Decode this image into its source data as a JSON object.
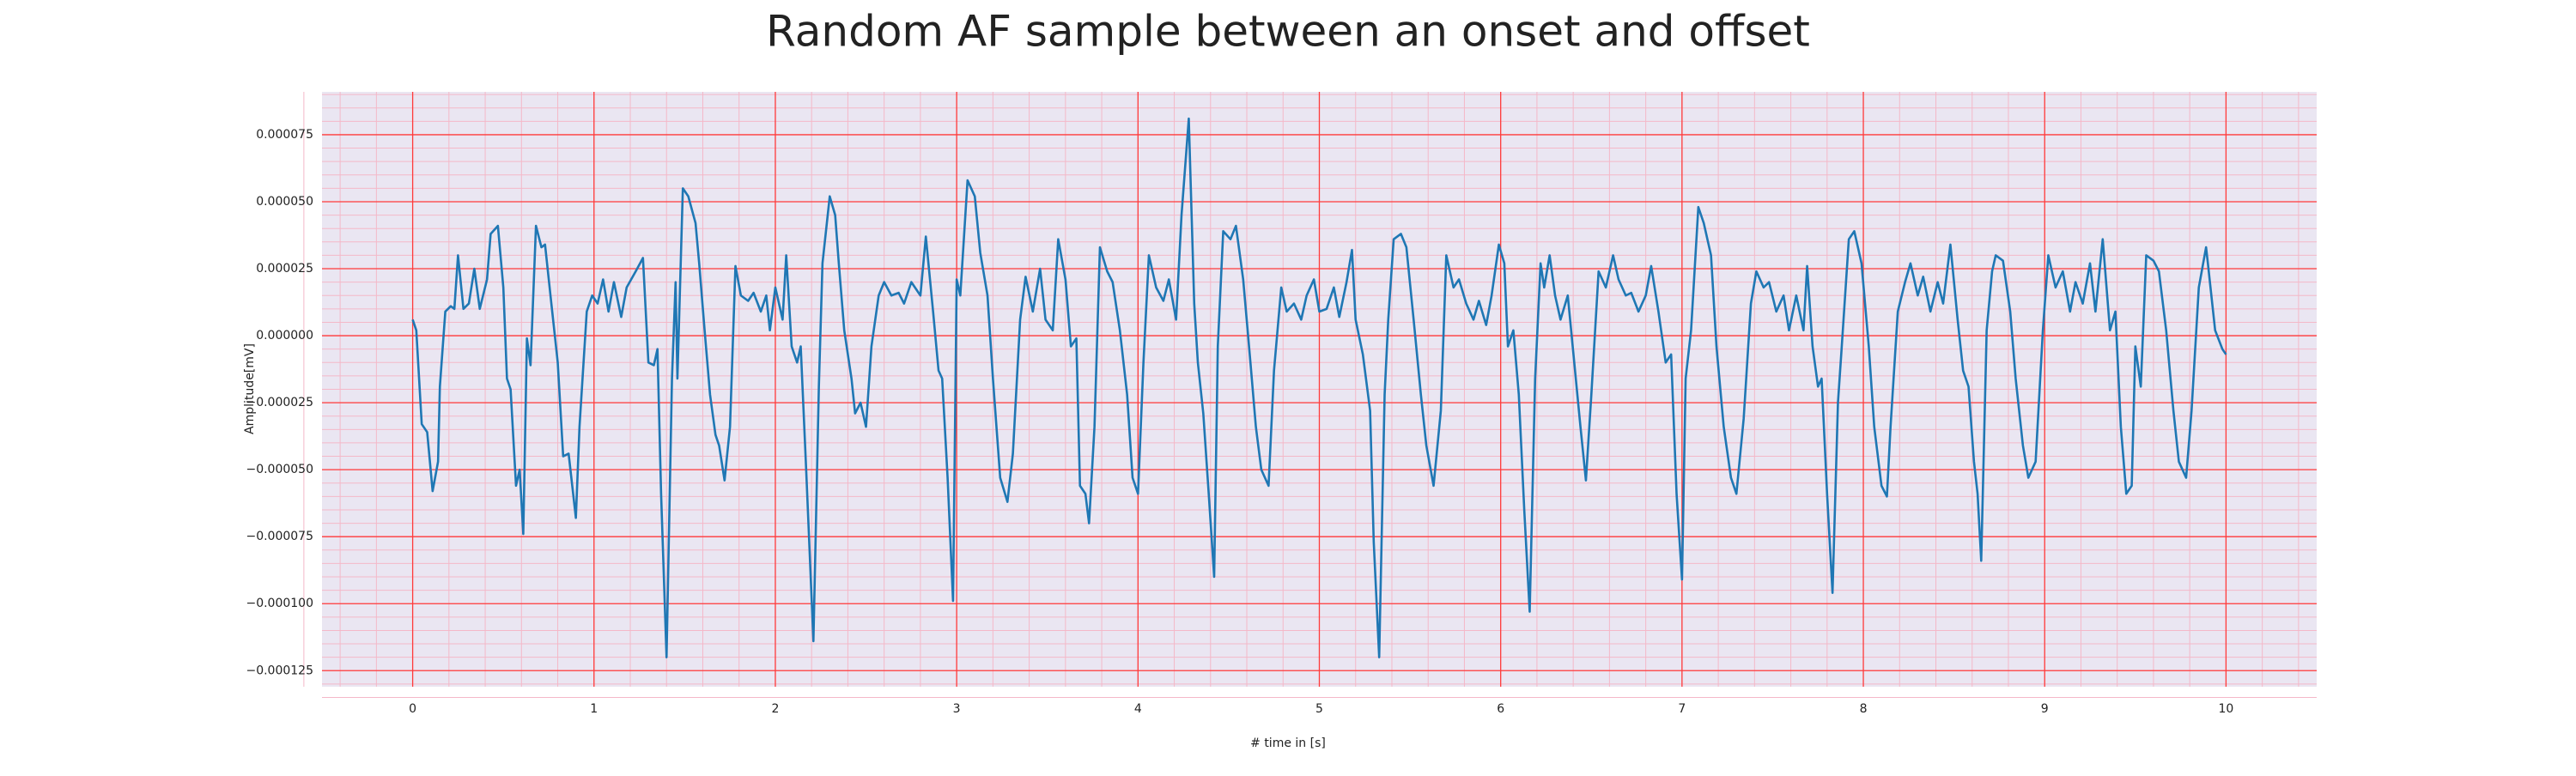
{
  "chart_data": {
    "type": "line",
    "title": "Random AF sample between an onset and offset",
    "xlabel": "# time in [s]",
    "ylabel": "Amplitude[mV]",
    "color": "#1f77b4",
    "background": "#eae6f2",
    "grid": true,
    "grid_color": "#ff3b3b",
    "minor_grid_color": "#f4b8c8",
    "minor_divisions": 5,
    "xlim": [
      -0.5,
      10.5
    ],
    "ylim": [
      -0.000131,
      9.1e-05
    ],
    "xticks": [
      0,
      1,
      2,
      3,
      4,
      5,
      6,
      7,
      8,
      9,
      10
    ],
    "yticks": [
      {
        "value": -0.000125,
        "label": "−0.000125"
      },
      {
        "value": -0.0001,
        "label": "−0.000100"
      },
      {
        "value": -7.5e-05,
        "label": "−0.000075"
      },
      {
        "value": -5e-05,
        "label": "−0.000050"
      },
      {
        "value": -2.5e-05,
        "label": "−0.000025"
      },
      {
        "value": 0,
        "label": "0.000000"
      },
      {
        "value": 2.5e-05,
        "label": "0.000025"
      },
      {
        "value": 5e-05,
        "label": "0.000050"
      },
      {
        "value": 7.5e-05,
        "label": "0.000075"
      }
    ],
    "x": [
      0,
      0.02,
      0.05,
      0.08,
      0.11,
      0.14,
      0.15,
      0.18,
      0.21,
      0.23,
      0.25,
      0.28,
      0.31,
      0.34,
      0.37,
      0.41,
      0.43,
      0.47,
      0.5,
      0.52,
      0.54,
      0.57,
      0.59,
      0.61,
      0.63,
      0.65,
      0.68,
      0.71,
      0.73,
      0.76,
      0.8,
      0.83,
      0.86,
      0.9,
      0.92,
      0.96,
      0.99,
      1.02,
      1.05,
      1.08,
      1.11,
      1.15,
      1.18,
      1.23,
      1.27,
      1.3,
      1.33,
      1.35,
      1.37,
      1.4,
      1.43,
      1.45,
      1.46,
      1.49,
      1.52,
      1.56,
      1.58,
      1.61,
      1.64,
      1.67,
      1.69,
      1.72,
      1.75,
      1.78,
      1.81,
      1.85,
      1.88,
      1.92,
      1.95,
      1.97,
      2.0,
      2.04,
      2.06,
      2.09,
      2.12,
      2.14,
      2.17,
      2.21,
      2.24,
      2.26,
      2.3,
      2.33,
      2.35,
      2.38,
      2.42,
      2.44,
      2.47,
      2.5,
      2.53,
      2.57,
      2.6,
      2.64,
      2.68,
      2.71,
      2.75,
      2.8,
      2.83,
      2.87,
      2.9,
      2.92,
      2.95,
      2.98,
      3.0,
      3.02,
      3.06,
      3.1,
      3.13,
      3.17,
      3.2,
      3.24,
      3.28,
      3.31,
      3.35,
      3.38,
      3.42,
      3.46,
      3.49,
      3.53,
      3.56,
      3.6,
      3.63,
      3.66,
      3.68,
      3.71,
      3.73,
      3.76,
      3.79,
      3.83,
      3.86,
      3.9,
      3.94,
      3.97,
      4.0,
      4.03,
      4.06,
      4.1,
      4.14,
      4.17,
      4.21,
      4.24,
      4.28,
      4.31,
      4.33,
      4.36,
      4.39,
      4.42,
      4.44,
      4.47,
      4.51,
      4.54,
      4.58,
      4.62,
      4.65,
      4.68,
      4.72,
      4.75,
      4.79,
      4.82,
      4.86,
      4.9,
      4.93,
      4.97,
      5.0,
      5.04,
      5.08,
      5.11,
      5.15,
      5.18,
      5.2,
      5.24,
      5.28,
      5.3,
      5.33,
      5.36,
      5.38,
      5.41,
      5.45,
      5.48,
      5.52,
      5.56,
      5.59,
      5.63,
      5.67,
      5.7,
      5.74,
      5.77,
      5.81,
      5.85,
      5.88,
      5.92,
      5.95,
      5.99,
      6.02,
      6.04,
      6.07,
      6.1,
      6.13,
      6.16,
      6.19,
      6.22,
      6.24,
      6.27,
      6.3,
      6.33,
      6.37,
      6.41,
      6.44,
      6.47,
      6.5,
      6.54,
      6.58,
      6.62,
      6.65,
      6.69,
      6.72,
      6.76,
      6.8,
      6.83,
      6.87,
      6.91,
      6.94,
      6.97,
      7.0,
      7.02,
      7.05,
      7.09,
      7.12,
      7.16,
      7.19,
      7.23,
      7.27,
      7.3,
      7.34,
      7.38,
      7.41,
      7.45,
      7.48,
      7.52,
      7.56,
      7.59,
      7.63,
      7.67,
      7.69,
      7.72,
      7.75,
      7.77,
      7.8,
      7.83,
      7.86,
      7.88,
      7.92,
      7.95,
      7.99,
      8.03,
      8.06,
      8.1,
      8.13,
      8.15,
      8.19,
      8.23,
      8.26,
      8.3,
      8.33,
      8.37,
      8.41,
      8.44,
      8.48,
      8.52,
      8.55,
      8.58,
      8.61,
      8.63,
      8.65,
      8.68,
      8.71,
      8.73,
      8.77,
      8.81,
      8.84,
      8.88,
      8.91,
      8.95,
      8.99,
      9.02,
      9.06,
      9.1,
      9.14,
      9.17,
      9.21,
      9.25,
      9.28,
      9.32,
      9.36,
      9.39,
      9.42,
      9.45,
      9.48,
      9.5,
      9.53,
      9.56,
      9.6,
      9.63,
      9.67,
      9.71,
      9.74,
      9.78,
      9.81,
      9.85,
      9.89,
      9.9,
      9.94,
      9.98,
      10.0
    ],
    "values": [
      6e-06,
      2e-06,
      -3.3e-05,
      -3.6e-05,
      -5.8e-05,
      -4.7e-05,
      -1.9e-05,
      9e-06,
      1.1e-05,
      1e-05,
      3e-05,
      1e-05,
      1.2e-05,
      2.5e-05,
      1e-05,
      2.1e-05,
      3.8e-05,
      4.1e-05,
      1.8e-05,
      -1.6e-05,
      -2e-05,
      -5.6e-05,
      -5e-05,
      -7.4e-05,
      -1e-06,
      -1.1e-05,
      4.1e-05,
      3.3e-05,
      3.4e-05,
      1.5e-05,
      -1e-05,
      -4.5e-05,
      -4.4e-05,
      -6.8e-05,
      -3.4e-05,
      9e-06,
      1.5e-05,
      1.2e-05,
      2.1e-05,
      9e-06,
      2e-05,
      7e-06,
      1.8e-05,
      2.4e-05,
      2.9e-05,
      -1e-05,
      -1.1e-05,
      -5e-06,
      -5.9e-05,
      -0.00012,
      -1.6e-05,
      2e-05,
      -1.6e-05,
      5.5e-05,
      5.2e-05,
      4.2e-05,
      2.7e-05,
      2e-06,
      -2.2e-05,
      -3.7e-05,
      -4.1e-05,
      -5.4e-05,
      -3.4e-05,
      2.6e-05,
      1.5e-05,
      1.3e-05,
      1.6e-05,
      9e-06,
      1.5e-05,
      2e-06,
      1.8e-05,
      6e-06,
      3e-05,
      -4e-06,
      -1e-05,
      -4e-06,
      -5e-05,
      -0.000114,
      -1.9e-05,
      2.7e-05,
      5.2e-05,
      4.5e-05,
      2.7e-05,
      2e-06,
      -1.6e-05,
      -2.9e-05,
      -2.5e-05,
      -3.4e-05,
      -4e-06,
      1.5e-05,
      2e-05,
      1.5e-05,
      1.6e-05,
      1.2e-05,
      2e-05,
      1.5e-05,
      3.7e-05,
      9e-06,
      -1.3e-05,
      -1.6e-05,
      -5.3e-05,
      -9.9e-05,
      2.1e-05,
      1.5e-05,
      5.8e-05,
      5.2e-05,
      3.1e-05,
      1.5e-05,
      -1.6e-05,
      -5.3e-05,
      -6.2e-05,
      -4.4e-05,
      6e-06,
      2.2e-05,
      9e-06,
      2.5e-05,
      6e-06,
      2e-06,
      3.6e-05,
      2.1e-05,
      -4e-06,
      -1e-06,
      -5.6e-05,
      -5.9e-05,
      -7e-05,
      -3.4e-05,
      3.3e-05,
      2.4e-05,
      2e-05,
      2e-06,
      -2.2e-05,
      -5.3e-05,
      -5.9e-05,
      -1e-05,
      3e-05,
      1.8e-05,
      1.3e-05,
      2.1e-05,
      6e-06,
      4.5e-05,
      8.1e-05,
      1.2e-05,
      -1e-05,
      -2.9e-05,
      -5.9e-05,
      -9e-05,
      -4e-06,
      3.9e-05,
      3.6e-05,
      4.1e-05,
      2.1e-05,
      -1e-05,
      -3.4e-05,
      -5e-05,
      -5.6e-05,
      -1.3e-05,
      1.8e-05,
      9e-06,
      1.2e-05,
      6e-06,
      1.5e-05,
      2.1e-05,
      9e-06,
      1e-05,
      1.8e-05,
      7e-06,
      2e-05,
      3.2e-05,
      6e-06,
      -7e-06,
      -2.8e-05,
      -7.7e-05,
      -0.00012,
      -2.2e-05,
      6e-06,
      3.6e-05,
      3.8e-05,
      3.3e-05,
      6e-06,
      -2.2e-05,
      -4.1e-05,
      -5.6e-05,
      -2.8e-05,
      3e-05,
      1.8e-05,
      2.1e-05,
      1.2e-05,
      6e-06,
      1.3e-05,
      4e-06,
      1.5e-05,
      3.4e-05,
      2.7e-05,
      -4e-06,
      2e-06,
      -2.2e-05,
      -6.5e-05,
      -0.000103,
      -1.6e-05,
      2.7e-05,
      1.8e-05,
      3e-05,
      1.5e-05,
      6e-06,
      1.5e-05,
      -1.3e-05,
      -3.4e-05,
      -5.4e-05,
      -2.2e-05,
      2.4e-05,
      1.8e-05,
      3e-05,
      2.1e-05,
      1.5e-05,
      1.6e-05,
      9e-06,
      1.5e-05,
      2.6e-05,
      9e-06,
      -1e-05,
      -7e-06,
      -5.9e-05,
      -9.1e-05,
      -1.6e-05,
      2e-06,
      4.8e-05,
      4.2e-05,
      3e-05,
      -4e-06,
      -3.4e-05,
      -5.3e-05,
      -5.9e-05,
      -3.1e-05,
      1.2e-05,
      2.4e-05,
      1.8e-05,
      2e-05,
      9e-06,
      1.5e-05,
      2e-06,
      1.5e-05,
      2e-06,
      2.6e-05,
      -4e-06,
      -1.9e-05,
      -1.6e-05,
      -5.9e-05,
      -9.6e-05,
      -2.5e-05,
      -5e-06,
      3.6e-05,
      3.9e-05,
      2.7e-05,
      -4e-06,
      -3.4e-05,
      -5.6e-05,
      -6e-05,
      -3.4e-05,
      9e-06,
      2e-05,
      2.7e-05,
      1.5e-05,
      2.2e-05,
      9e-06,
      2e-05,
      1.2e-05,
      3.4e-05,
      6e-06,
      -1.3e-05,
      -1.9e-05,
      -4.7e-05,
      -5.9e-05,
      -8.4e-05,
      2e-06,
      2.4e-05,
      3e-05,
      2.8e-05,
      9e-06,
      -1.6e-05,
      -4.1e-05,
      -5.3e-05,
      -4.7e-05,
      2e-06,
      3e-05,
      1.8e-05,
      2.4e-05,
      9e-06,
      2e-05,
      1.2e-05,
      2.7e-05,
      9e-06,
      3.6e-05,
      2e-06,
      9e-06,
      -3.4e-05,
      -5.9e-05,
      -5.6e-05,
      -4e-06,
      -1.9e-05,
      3e-05,
      2.8e-05,
      2.4e-05,
      2e-06,
      -2.8e-05,
      -4.7e-05,
      -5.3e-05,
      -2.8e-05,
      1.8e-05,
      3.3e-05,
      2.7e-05,
      2e-06,
      -5e-06,
      -7e-06
    ]
  }
}
